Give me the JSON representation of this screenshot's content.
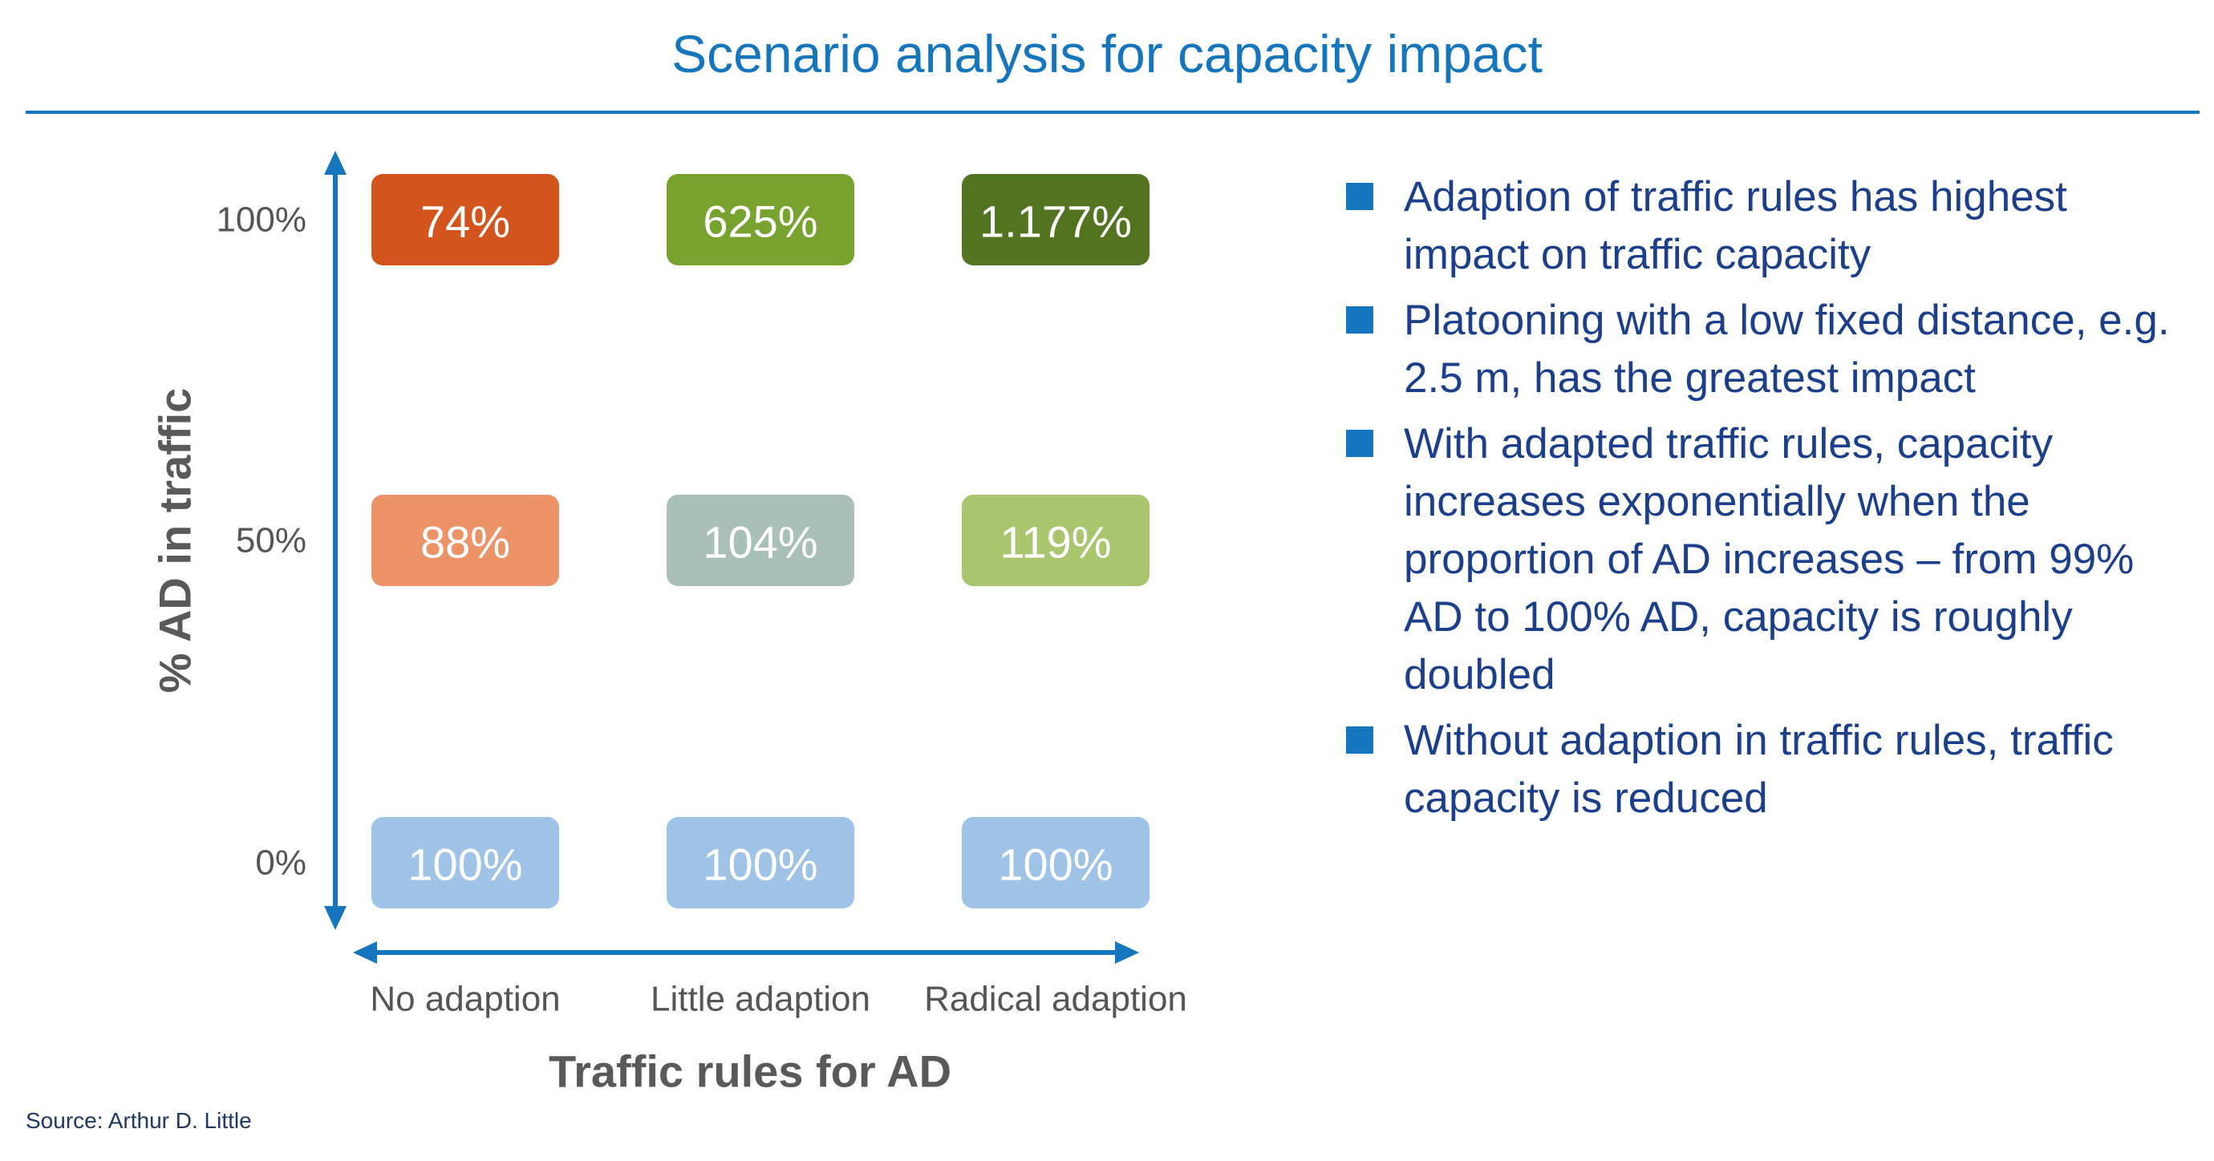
{
  "title": "Scenario analysis for capacity impact",
  "chart_data": {
    "type": "heatmap",
    "x_title": "Traffic rules for AD",
    "y_title": "% AD in traffic",
    "x_categories": [
      "No adaption",
      "Little adaption",
      "Radical adaption"
    ],
    "y_categories": [
      "100%",
      "50%",
      "0%"
    ],
    "cells": [
      [
        {
          "label": "74%",
          "color": "#d4541e"
        },
        {
          "label": "625%",
          "color": "#77a22e"
        },
        {
          "label": "1.177%",
          "color": "#52731f"
        }
      ],
      [
        {
          "label": "88%",
          "color": "#ec9368"
        },
        {
          "label": "104%",
          "color": "#a9c0b9"
        },
        {
          "label": "119%",
          "color": "#a9c56e"
        }
      ],
      [
        {
          "label": "100%",
          "color": "#9fc3e7"
        },
        {
          "label": "100%",
          "color": "#9fc3e7"
        },
        {
          "label": "100%",
          "color": "#9fc3e7"
        }
      ]
    ],
    "axis_color": "#1576bd"
  },
  "bullets": [
    "Adaption of traffic rules has highest impact on traffic capacity",
    "Platooning with a low fixed distance, e.g.  2.5 m, has the greatest impact",
    "With adapted traffic rules, capacity increases exponentially when the proportion of AD increases – from 99% AD to 100% AD, capacity is roughly doubled",
    "Without adaption in traffic rules, traffic capacity is reduced"
  ],
  "source": "Source: Arthur D. Little",
  "colors": {
    "accent": "#1576bd",
    "bullet_text": "#1b3f8b"
  }
}
